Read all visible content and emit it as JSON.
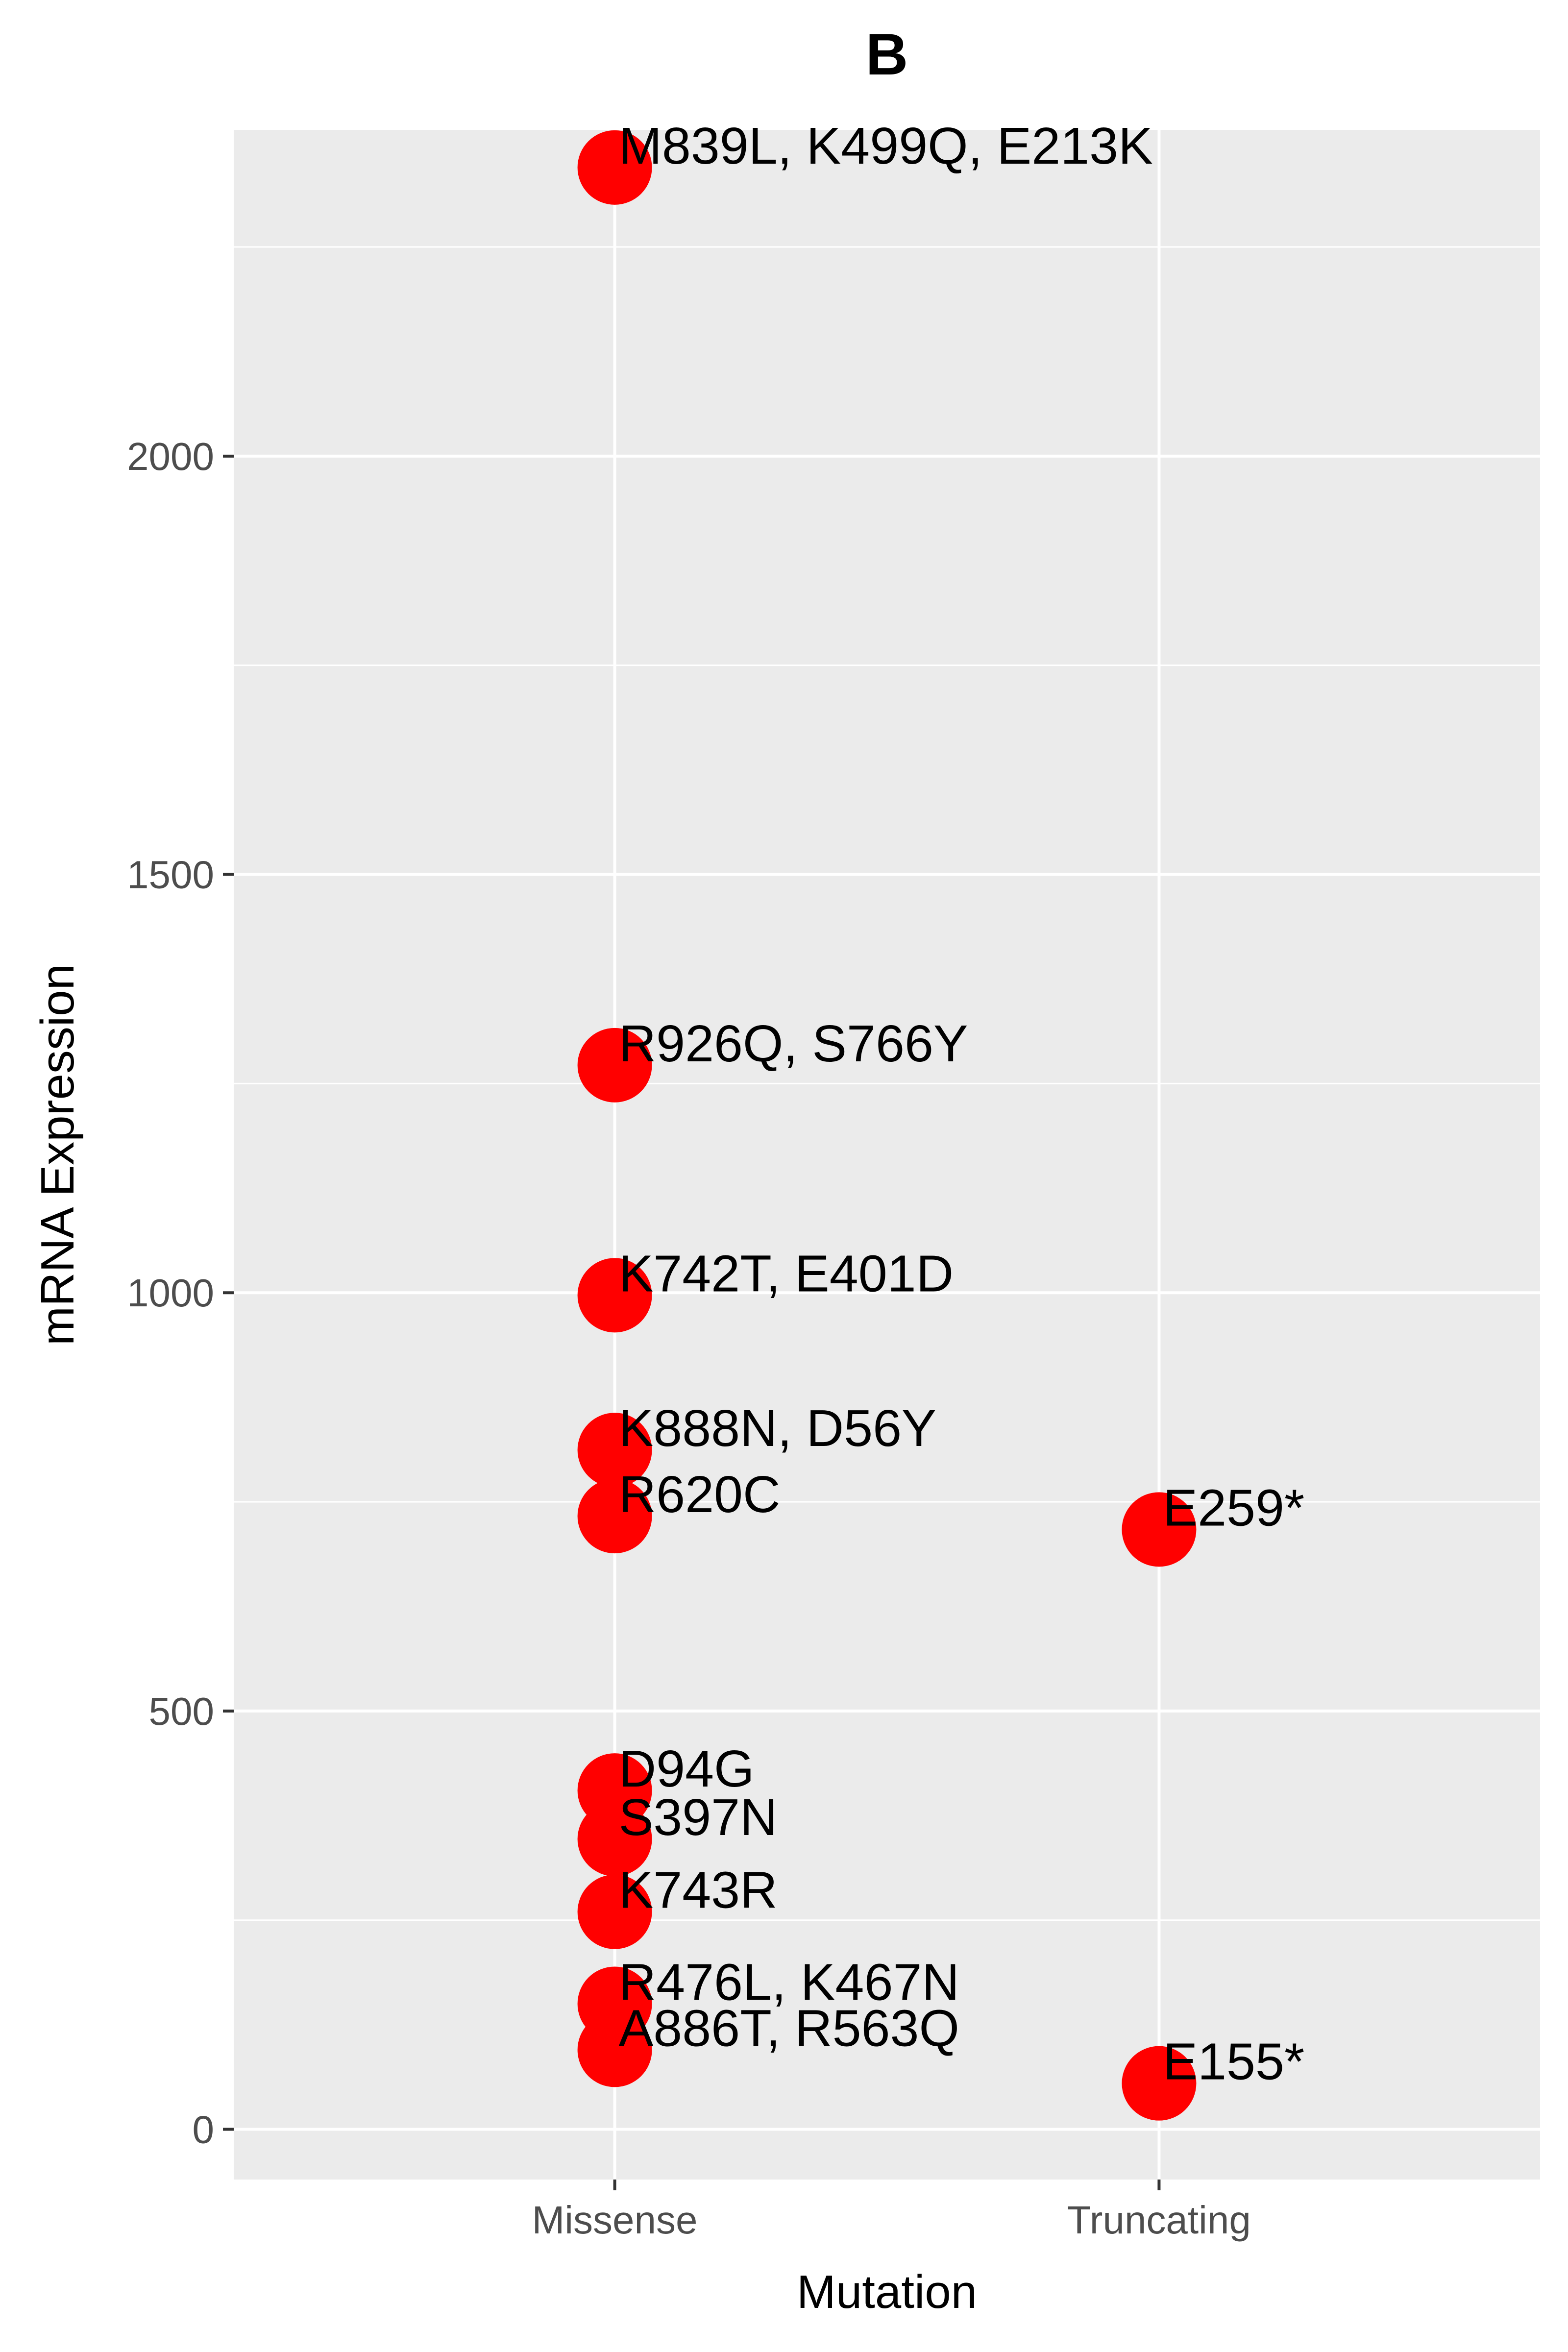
{
  "chart_data": {
    "type": "scatter",
    "title": "B",
    "xlabel": "Mutation",
    "ylabel": "mRNA Expression",
    "categories": [
      "Missense",
      "Truncating"
    ],
    "yticks": [
      0,
      500,
      1000,
      1500,
      2000
    ],
    "ylim": [
      -60,
      2390
    ],
    "grid": true,
    "legend": "none",
    "point_color": "#ff0000",
    "panel_color": "#ebebeb",
    "points": [
      {
        "category": "Missense",
        "y": 2345,
        "label": "M839L, K499Q, E213K"
      },
      {
        "category": "Missense",
        "y": 1272,
        "label": "R926Q, S766Y"
      },
      {
        "category": "Missense",
        "y": 997,
        "label": "K742T, E401D"
      },
      {
        "category": "Missense",
        "y": 812,
        "label": "K888N, D56Y"
      },
      {
        "category": "Missense",
        "y": 733,
        "label": "R620C"
      },
      {
        "category": "Missense",
        "y": 405,
        "label": "D94G"
      },
      {
        "category": "Missense",
        "y": 347,
        "label": "S397N"
      },
      {
        "category": "Missense",
        "y": 260,
        "label": "K743R"
      },
      {
        "category": "Missense",
        "y": 150,
        "label": "R476L, K467N"
      },
      {
        "category": "Missense",
        "y": 95,
        "label": "A886T, R563Q"
      },
      {
        "category": "Truncating",
        "y": 717,
        "label": "E259*"
      },
      {
        "category": "Truncating",
        "y": 55,
        "label": "E155*"
      }
    ]
  }
}
